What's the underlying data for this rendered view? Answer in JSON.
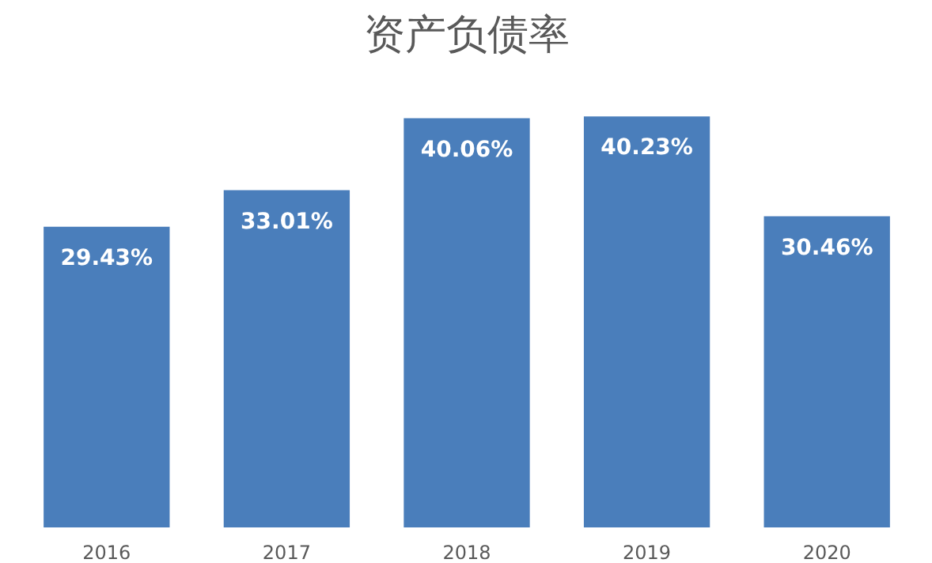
{
  "chart_data": {
    "type": "bar",
    "title": "资产负债率",
    "categories": [
      "2016",
      "2017",
      "2018",
      "2019",
      "2020"
    ],
    "values": [
      29.43,
      33.01,
      40.06,
      40.23,
      30.46
    ],
    "value_labels": [
      "29.43%",
      "33.01%",
      "40.06%",
      "40.23%",
      "30.46%"
    ],
    "color": "#4a7ebb",
    "grid": false,
    "tick_labels": "x"
  }
}
